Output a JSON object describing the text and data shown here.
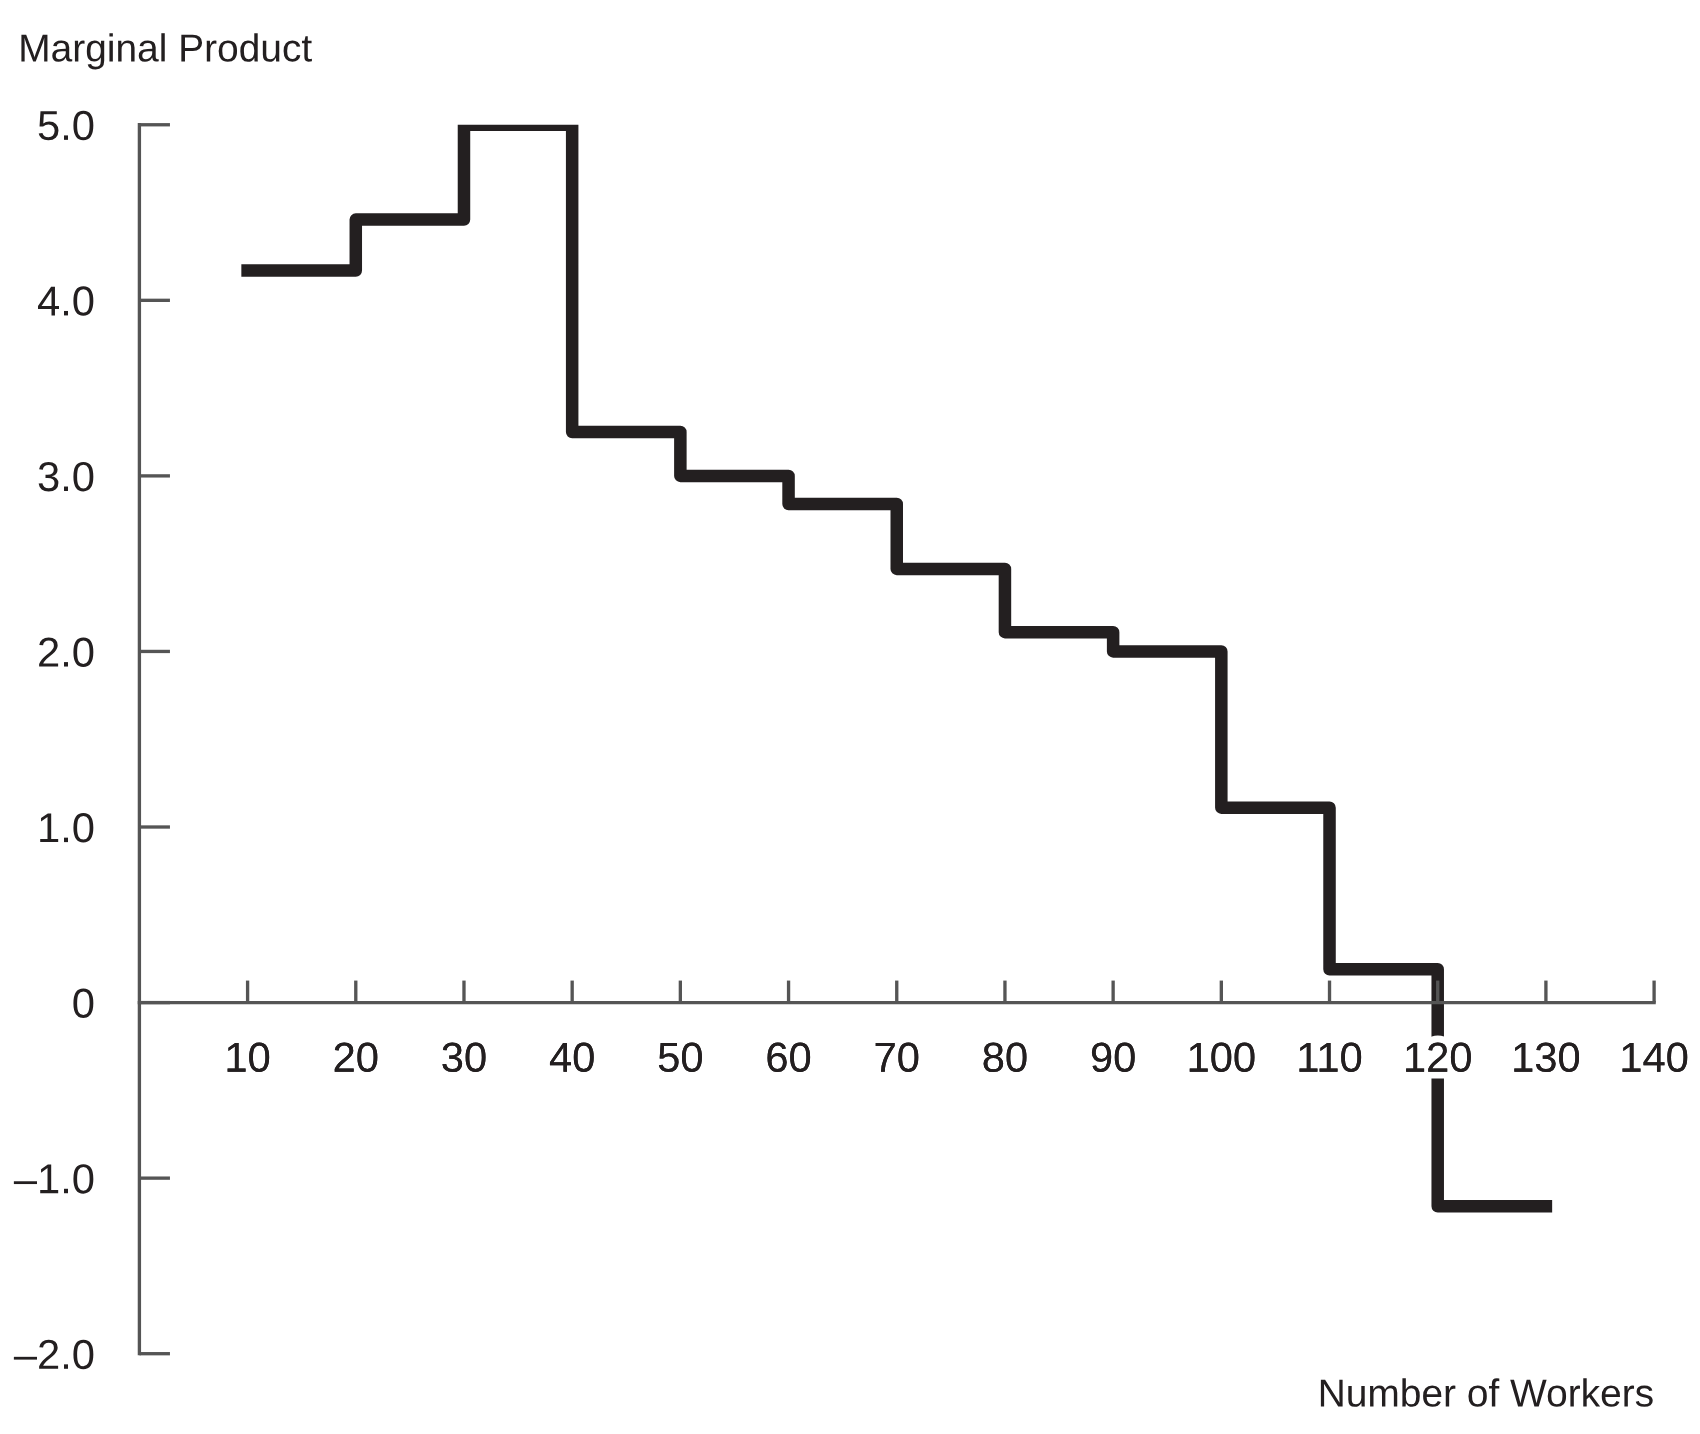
{
  "chart_data": {
    "type": "step",
    "xlabel": "Number of Workers",
    "ylabel": "Marginal Product",
    "x": [
      10,
      20,
      30,
      40,
      50,
      60,
      70,
      80,
      90,
      100,
      110,
      120,
      130
    ],
    "series": [
      {
        "color": "#231f20",
        "values": [
          4.17,
          4.46,
          5.0,
          3.25,
          3.0,
          2.84,
          2.47,
          2.11,
          2.0,
          1.11,
          0.19,
          -1.16,
          -1.16
        ]
      }
    ],
    "xlim": [
      0,
      140
    ],
    "xticks": [
      10,
      20,
      30,
      40,
      50,
      60,
      70,
      80,
      90,
      100,
      110,
      120,
      130,
      140
    ],
    "ylim": [
      -2,
      5
    ],
    "yticks": [
      {
        "value": -2,
        "label": "–2.0"
      },
      {
        "value": -1,
        "label": "–1.0"
      },
      0,
      {
        "value": 1,
        "label": "1.0"
      },
      {
        "value": 2,
        "label": "2.0"
      },
      {
        "value": 3,
        "label": "3.0"
      },
      {
        "value": 4,
        "label": "4.0"
      },
      {
        "value": 5,
        "label": "5.0"
      }
    ],
    "grid": false,
    "marker": "none",
    "line_style": "solid"
  }
}
